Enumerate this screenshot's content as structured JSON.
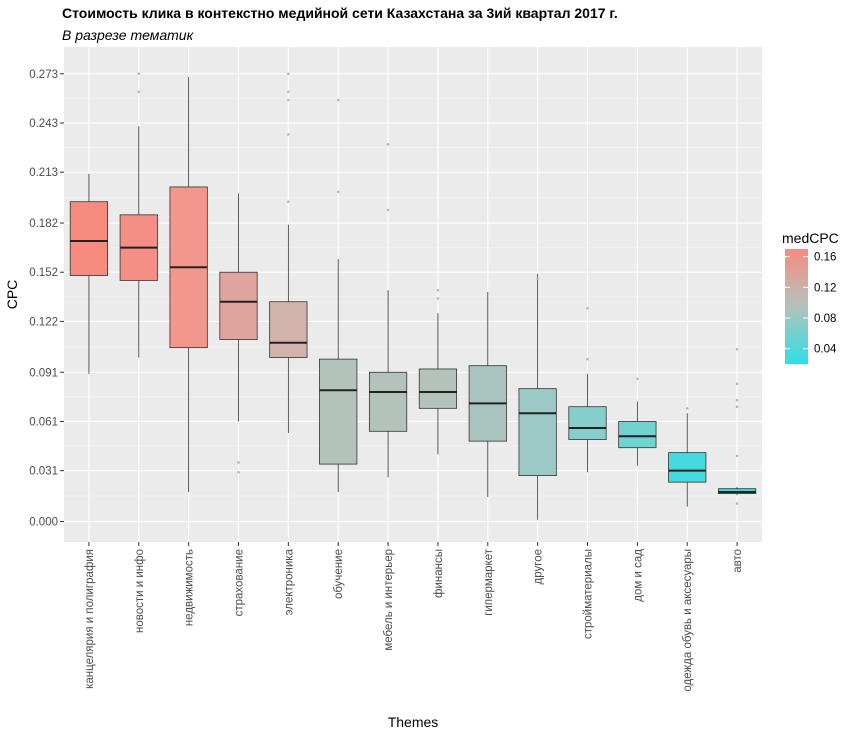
{
  "chart_data": {
    "type": "boxplot",
    "title": "Стоимость клика в контекстно медийной сети Казахстана за 3ий квартал 2017 г.",
    "subtitle": "В разрезе тематик",
    "xlabel": "Themes",
    "ylabel": "CPC",
    "ylim": [
      -0.015,
      0.288
    ],
    "yticks": [
      "0.000",
      "0.031",
      "0.061",
      "0.091",
      "0.122",
      "0.152",
      "0.182",
      "0.213",
      "0.243",
      "0.273"
    ],
    "grid": true,
    "legend": {
      "title": "medCPC",
      "placement": "right",
      "range": [
        0.02,
        0.17
      ],
      "ticks": [
        "0.16",
        "0.12",
        "0.08",
        "0.04"
      ],
      "color_low": "#2de0e6",
      "color_high": "#f88b80"
    },
    "categories": [
      "канцелярия и полиграфия",
      "новости и инфо",
      "недвижимость",
      "страхование",
      "электроника",
      "обучение",
      "мебель и интерьер",
      "финансы",
      "гипермаркет",
      "другое",
      "стройматериалы",
      "дом и сад",
      "одежда обувь и аксесуары",
      "авто"
    ],
    "boxes": [
      {
        "whisker_low": 0.09,
        "q1": 0.15,
        "median": 0.171,
        "q3": 0.195,
        "whisker_high": 0.212,
        "outliers": [],
        "color": "#f88b80"
      },
      {
        "whisker_low": 0.1,
        "q1": 0.147,
        "median": 0.167,
        "q3": 0.187,
        "whisker_high": 0.241,
        "outliers": [
          0.262,
          0.273
        ],
        "color": "#f38f85"
      },
      {
        "whisker_low": 0.018,
        "q1": 0.106,
        "median": 0.155,
        "q3": 0.204,
        "whisker_high": 0.271,
        "outliers": [],
        "color": "#f3978d"
      },
      {
        "whisker_low": 0.061,
        "q1": 0.111,
        "median": 0.134,
        "q3": 0.152,
        "whisker_high": 0.2,
        "outliers": [
          0.036,
          0.03
        ],
        "color": "#dfa59d"
      },
      {
        "whisker_low": 0.054,
        "q1": 0.1,
        "median": 0.109,
        "q3": 0.134,
        "whisker_high": 0.181,
        "outliers": [
          0.273,
          0.262,
          0.257,
          0.236,
          0.195
        ],
        "color": "#d2b3ac"
      },
      {
        "whisker_low": 0.018,
        "q1": 0.035,
        "median": 0.08,
        "q3": 0.099,
        "whisker_high": 0.16,
        "outliers": [
          0.257,
          0.201
        ],
        "color": "#b4c2bc"
      },
      {
        "whisker_low": 0.027,
        "q1": 0.055,
        "median": 0.079,
        "q3": 0.091,
        "whisker_high": 0.141,
        "outliers": [
          0.23,
          0.19
        ],
        "color": "#b4c2bc"
      },
      {
        "whisker_low": 0.041,
        "q1": 0.069,
        "median": 0.079,
        "q3": 0.093,
        "whisker_high": 0.127,
        "outliers": [
          0.141,
          0.136
        ],
        "color": "#b4c2bc"
      },
      {
        "whisker_low": 0.015,
        "q1": 0.049,
        "median": 0.072,
        "q3": 0.095,
        "whisker_high": 0.14,
        "outliers": [],
        "color": "#a9c4bf"
      },
      {
        "whisker_low": 0.001,
        "q1": 0.028,
        "median": 0.066,
        "q3": 0.081,
        "whisker_high": 0.151,
        "outliers": [
          0.148
        ],
        "color": "#9cc9c5"
      },
      {
        "whisker_low": 0.03,
        "q1": 0.05,
        "median": 0.057,
        "q3": 0.07,
        "whisker_high": 0.09,
        "outliers": [
          0.13,
          0.099
        ],
        "color": "#86cecb"
      },
      {
        "whisker_low": 0.034,
        "q1": 0.045,
        "median": 0.052,
        "q3": 0.061,
        "whisker_high": 0.073,
        "outliers": [
          0.087
        ],
        "color": "#70d3d1"
      },
      {
        "whisker_low": 0.009,
        "q1": 0.024,
        "median": 0.031,
        "q3": 0.042,
        "whisker_high": 0.066,
        "outliers": [
          0.069
        ],
        "color": "#45dadd"
      },
      {
        "whisker_low": 0.016,
        "q1": 0.017,
        "median": 0.018,
        "q3": 0.02,
        "whisker_high": 0.021,
        "outliers": [
          0.105,
          0.084,
          0.074,
          0.07,
          0.04,
          0.011
        ],
        "color": "#34dde3"
      }
    ]
  }
}
